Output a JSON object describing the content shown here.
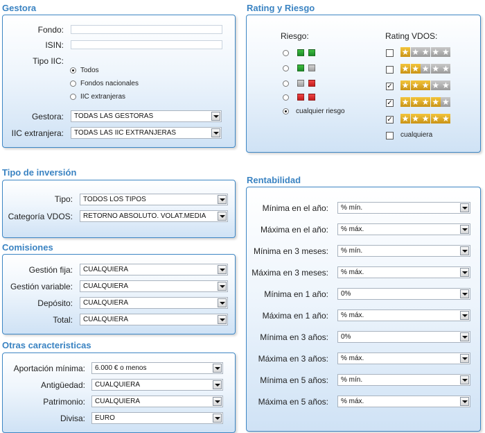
{
  "gestora": {
    "title": "Gestora",
    "fondo_label": "Fondo:",
    "fondo_value": "",
    "isin_label": "ISIN:",
    "isin_value": "",
    "tipo_iic_label": "Tipo IIC:",
    "tipo_iic_options": [
      "Todos",
      "Fondos nacionales",
      "IIC extranjeras"
    ],
    "gestora_label": "Gestora:",
    "gestora_value": "TODAS LAS GESTORAS",
    "iic_ext_label": "IIC extranjera:",
    "iic_ext_value": "TODAS LAS IIC EXTRANJERAS"
  },
  "rating": {
    "title": "Rating y Riesgo",
    "riesgo_label": "Riesgo:",
    "rating_label": "Rating VDOS:",
    "cualquier_riesgo": "cualquier riesgo",
    "cualquiera": "cualquiera",
    "star_glyph": "★",
    "check_glyph": "✓"
  },
  "tipo_inversion": {
    "title": "Tipo de inversión",
    "tipo_label": "Tipo:",
    "tipo_value": "TODOS LOS TIPOS",
    "categoria_label": "Categoría VDOS:",
    "categoria_value": "RETORNO ABSOLUTO. VOLAT.MEDIA"
  },
  "comisiones": {
    "title": "Comisiones",
    "rows": [
      {
        "label": "Gestión fija:",
        "value": "CUALQUIERA"
      },
      {
        "label": "Gestión variable:",
        "value": "CUALQUIERA"
      },
      {
        "label": "Depósito:",
        "value": "CUALQUIERA"
      },
      {
        "label": "Total:",
        "value": "CUALQUIERA"
      }
    ]
  },
  "otras": {
    "title": "Otras caracteristicas",
    "rows": [
      {
        "label": "Aportación mínima:",
        "value": "6.000 € o menos"
      },
      {
        "label": "Antigüedad:",
        "value": "CUALQUIERA"
      },
      {
        "label": "Patrimonio:",
        "value": "CUALQUIERA"
      },
      {
        "label": "Divisa:",
        "value": "EURO"
      }
    ]
  },
  "rentabilidad": {
    "title": "Rentabilidad",
    "rows": [
      {
        "label": "Mínima en el año:",
        "value": "% mín."
      },
      {
        "label": "Máxima en el año:",
        "value": "% máx."
      },
      {
        "label": "Mínima en 3 meses:",
        "value": "% mín."
      },
      {
        "label": "Máxima en 3 meses:",
        "value": "% máx."
      },
      {
        "label": "Mínima en 1 año:",
        "value": "0%"
      },
      {
        "label": "Máxima en 1 año:",
        "value": "% máx."
      },
      {
        "label": "Mínima en 3 años:",
        "value": "0%"
      },
      {
        "label": "Máxima en 3 años:",
        "value": "% máx."
      },
      {
        "label": "Mínima en 5 años:",
        "value": "% mín."
      },
      {
        "label": "Máxima en 5 años:",
        "value": "% máx."
      }
    ]
  },
  "colors": {
    "title_blue": "#3a83c2",
    "panel_border": "#3d86c4",
    "star_gold": "#e0a92a",
    "risk_green": "#2aa52a",
    "risk_red": "#d52b2b",
    "risk_gray": "#b4b4b4"
  }
}
